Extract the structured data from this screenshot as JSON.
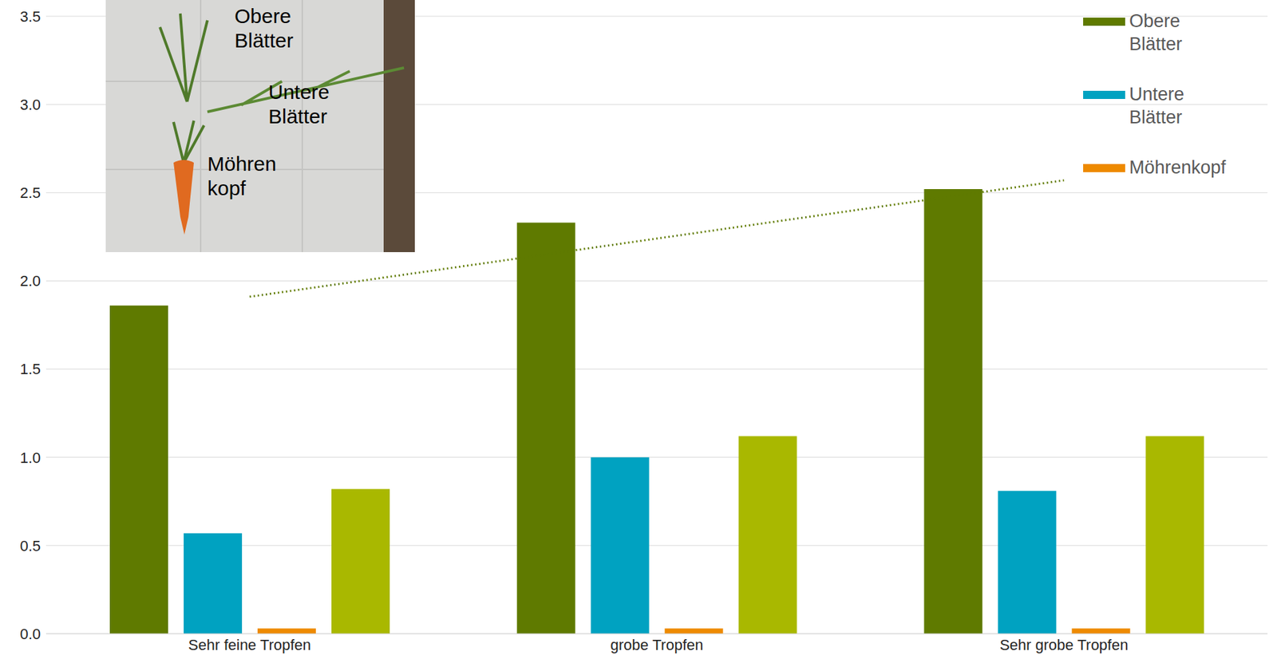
{
  "chart_data": {
    "type": "bar",
    "categories": [
      "Sehr feine Tropfen",
      "grobe Tropfen",
      "Sehr grobe Tropfen"
    ],
    "series": [
      {
        "name": "Obere Blätter",
        "color": "#5f7a00",
        "values": [
          1.86,
          2.33,
          2.52
        ]
      },
      {
        "name": "Untere Blätter",
        "color": "#00a2c1",
        "values": [
          0.57,
          1.0,
          0.81
        ]
      },
      {
        "name": "Möhrenkopf",
        "color": "#ee8a00",
        "values": [
          0.03,
          0.03,
          0.03
        ]
      },
      {
        "name": null,
        "color": "#a9b800",
        "values": [
          0.82,
          1.12,
          1.12
        ]
      },
      {
        "name": null,
        "type": "line",
        "line_style": "dotted",
        "color": "#5f7a00",
        "values": [
          1.91,
          2.24,
          2.57
        ]
      }
    ],
    "ylim": [
      0,
      3.5
    ],
    "yticks": [
      {
        "value": 0,
        "label": "0.0"
      },
      0.5,
      {
        "value": 1,
        "label": "1.0"
      },
      1.5,
      {
        "value": 2,
        "label": "2.0"
      },
      2.5,
      {
        "value": 3,
        "label": "3.0"
      },
      3.5
    ],
    "grid": true,
    "legend": "top-right",
    "annotations": [
      "Obere Blätter",
      "Untere Blätter",
      "Möhren kopf"
    ]
  }
}
